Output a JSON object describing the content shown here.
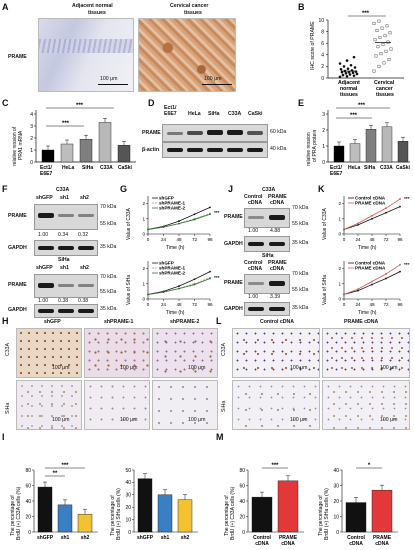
{
  "panels": {
    "A": "A",
    "B": "B",
    "C": "C",
    "D": "D",
    "E": "E",
    "F": "F",
    "G": "G",
    "H": "H",
    "I": "I",
    "J": "J",
    "K": "K",
    "L": "L",
    "M": "M"
  },
  "A": {
    "col1": "Adjacent normal",
    "col1b": "tissues",
    "col2": "Cervical cancer",
    "col2b": "tissues",
    "row": "PRAME",
    "scale": "100 μm"
  },
  "B": {
    "ylabel": "IHC score of PRAME",
    "sig": "***",
    "cat1": "Adjacent",
    "cat1b": "normal",
    "cat1c": "tissues",
    "cat2": "Cervical",
    "cat2b": "cancer",
    "cat2c": "tissues",
    "ticks": [
      "0",
      "2",
      "4",
      "6",
      "8",
      "10"
    ]
  },
  "C": {
    "ylabel1": "relative ression of",
    "ylabel2": "PRA1 mRNA",
    "sig1": "***",
    "sig2": "***",
    "cats": [
      "Ect1/",
      "E6E7",
      "HeLa",
      "SiHa",
      "C33A",
      "CaSki"
    ],
    "ticks": [
      "0",
      "1",
      "2",
      "3",
      "4"
    ]
  },
  "D": {
    "cols": [
      "Ect1/",
      "E6E7",
      "HeLa",
      "SiHa",
      "C33A",
      "CaSki"
    ],
    "row1": "PRAME",
    "row2": "β-actin",
    "kd1": "60 kDa",
    "kd2": "40 kDa"
  },
  "E": {
    "ylabel1": "relative ression",
    "ylabel2": "of PRA protein",
    "sig1": "***",
    "sig2": "***",
    "cats": [
      "Ect1/",
      "E6E7",
      "HeLa",
      "SiHa",
      "C33A",
      "CaSki"
    ],
    "ticks": [
      "0",
      "1",
      "2",
      "3"
    ]
  },
  "F": {
    "cell1": "C33A",
    "cell2": "SiHa",
    "lanes": [
      "shGFP",
      "sh1",
      "sh2"
    ],
    "row1": "PRAME",
    "row2": "GAPDH",
    "kd1a": "70 kDa",
    "kd1b": "55 kDa",
    "kd2": "35 kDa",
    "vals1": [
      "1.00",
      "0.34",
      "0.32"
    ],
    "vals2": [
      "1.00",
      "0.38",
      "0.38"
    ]
  },
  "G": {
    "leg": [
      "shGFP",
      "shPRAME-1",
      "shPRAME-2"
    ],
    "y1a": "OD",
    "y1b": "450nm",
    "y1c": " Value of C33A",
    "y2c": " Value of SiHa",
    "xlabel": "Time (h)",
    "xt": [
      "0",
      "24",
      "48",
      "72",
      "96"
    ],
    "sig": "***"
  },
  "J": {
    "cell1": "C33A",
    "cell2": "SiHa",
    "lanes": [
      "Control",
      "cDNA",
      "PRAME",
      "cDNA"
    ],
    "row1": "PRAME",
    "row2": "GAPDH",
    "kd1": "70 kDa",
    "kd1b": "55 kDa",
    "kd2": "35 kDa",
    "vals1": [
      "1.00",
      "4.88"
    ],
    "vals2": [
      "1.00",
      "3.39"
    ]
  },
  "K": {
    "leg": [
      "Control cDNA",
      "PRAME cDNA"
    ],
    "y1c": " Value of C33A",
    "y2c": " Value of SiHa",
    "xlabel": "Time (h)",
    "xt": [
      "0",
      "24",
      "48",
      "72",
      "96"
    ],
    "sig": "***"
  },
  "H": {
    "cols": [
      "shGFP",
      "shPRAME-1",
      "shPRAME-2"
    ],
    "rows": [
      "C33A",
      "SiHa"
    ],
    "scale": "100 μm"
  },
  "L": {
    "cols": [
      "Control cDNA",
      "PRAME cDNA"
    ],
    "rows": [
      "C33A",
      "SiHa"
    ],
    "scale": "100 μm"
  },
  "I": {
    "y1a": "The percentage of",
    "y1b": "BrdU (+) C33A cells (%)",
    "y2b": "BrdU (+) SiHa cells (%)",
    "cats": [
      "shGFP",
      "sh1",
      "sh2"
    ],
    "sigA": "***",
    "sigB": "**",
    "ticks1": [
      "0",
      "20",
      "40",
      "60",
      "80"
    ],
    "ticks2": [
      "0",
      "10",
      "20",
      "30",
      "40",
      "50"
    ]
  },
  "M": {
    "y1a": "The percentage of",
    "y1b": "BrdU (+) C33A cells (%)",
    "y2b": "BrdU (+) SiHa cells (%)",
    "cats": [
      "Control",
      "cDNA",
      "PRAME",
      "cDNA"
    ],
    "sigA": "***",
    "sigB": "*",
    "ticks1": [
      "0",
      "20",
      "40",
      "60",
      "80"
    ],
    "ticks2": [
      "0",
      "10",
      "20",
      "30",
      "40"
    ]
  },
  "chart_data": [
    {
      "type": "scatter",
      "panel": "B",
      "categories": [
        "Adjacent normal tissues",
        "Cervical cancer tissues"
      ],
      "ylabel": "IHC score of PRAME",
      "ylim": [
        0,
        10
      ],
      "means": [
        1.2,
        6.1
      ]
    },
    {
      "type": "bar",
      "panel": "C",
      "categories": [
        "Ect1/E6E7",
        "HeLa",
        "SiHa",
        "C33A",
        "CaSki"
      ],
      "values": [
        1.0,
        1.5,
        1.9,
        3.3,
        1.4
      ],
      "ylim": [
        0,
        4
      ],
      "colors": [
        "#000000",
        "#bdbdbd",
        "#7f7f7f",
        "#b8b8b8",
        "#555555"
      ]
    },
    {
      "type": "bar",
      "panel": "E",
      "categories": [
        "Ect1/E6E7",
        "HeLa",
        "SiHa",
        "C33A",
        "CaSki"
      ],
      "values": [
        1.0,
        1.15,
        2.05,
        2.2,
        1.3
      ],
      "ylim": [
        0,
        3
      ],
      "colors": [
        "#000000",
        "#bdbdbd",
        "#7f7f7f",
        "#b8b8b8",
        "#555555"
      ]
    },
    {
      "type": "line",
      "panel": "G-C33A",
      "x": [
        0,
        24,
        48,
        72,
        96
      ],
      "series": [
        {
          "name": "shGFP",
          "values": [
            0.3,
            0.5,
            0.85,
            1.3,
            1.75
          ]
        },
        {
          "name": "shPRAME-1",
          "values": [
            0.3,
            0.45,
            0.7,
            1.0,
            1.35
          ]
        },
        {
          "name": "shPRAME-2",
          "values": [
            0.3,
            0.45,
            0.68,
            0.95,
            1.3
          ]
        }
      ]
    },
    {
      "type": "line",
      "panel": "G-SiHa",
      "x": [
        0,
        24,
        48,
        72,
        96
      ],
      "series": [
        {
          "name": "shGFP",
          "values": [
            0.3,
            0.5,
            0.85,
            1.3,
            1.8
          ]
        },
        {
          "name": "shPRAME-1",
          "values": [
            0.3,
            0.45,
            0.7,
            1.0,
            1.4
          ]
        },
        {
          "name": "shPRAME-2",
          "values": [
            0.3,
            0.45,
            0.68,
            0.95,
            1.35
          ]
        }
      ]
    },
    {
      "type": "line",
      "panel": "K-C33A",
      "x": [
        0,
        24,
        48,
        72,
        96
      ],
      "series": [
        {
          "name": "Control cDNA",
          "values": [
            0.3,
            0.6,
            1.0,
            1.4,
            1.8
          ]
        },
        {
          "name": "PRAME cDNA",
          "values": [
            0.3,
            0.7,
            1.2,
            1.7,
            2.3
          ]
        }
      ]
    },
    {
      "type": "line",
      "panel": "K-SiHa",
      "x": [
        0,
        24,
        48,
        72,
        96
      ],
      "series": [
        {
          "name": "Control cDNA",
          "values": [
            0.3,
            0.55,
            0.95,
            1.35,
            1.8
          ]
        },
        {
          "name": "PRAME cDNA",
          "values": [
            0.3,
            0.65,
            1.15,
            1.65,
            2.25
          ]
        }
      ]
    },
    {
      "type": "bar",
      "panel": "I-C33A",
      "categories": [
        "shGFP",
        "sh1",
        "sh2"
      ],
      "values": [
        58,
        35,
        23
      ],
      "ylim": [
        0,
        80
      ]
    },
    {
      "type": "bar",
      "panel": "I-SiHa",
      "categories": [
        "shGFP",
        "sh1",
        "sh2"
      ],
      "values": [
        43,
        30,
        26
      ],
      "ylim": [
        0,
        50
      ]
    },
    {
      "type": "bar",
      "panel": "M-C33A",
      "categories": [
        "Control cDNA",
        "PRAME cDNA"
      ],
      "values": [
        45,
        66
      ],
      "ylim": [
        0,
        80
      ]
    },
    {
      "type": "bar",
      "panel": "M-SiHa",
      "categories": [
        "Control cDNA",
        "PRAME cDNA"
      ],
      "values": [
        19,
        27
      ],
      "ylim": [
        0,
        40
      ]
    }
  ]
}
